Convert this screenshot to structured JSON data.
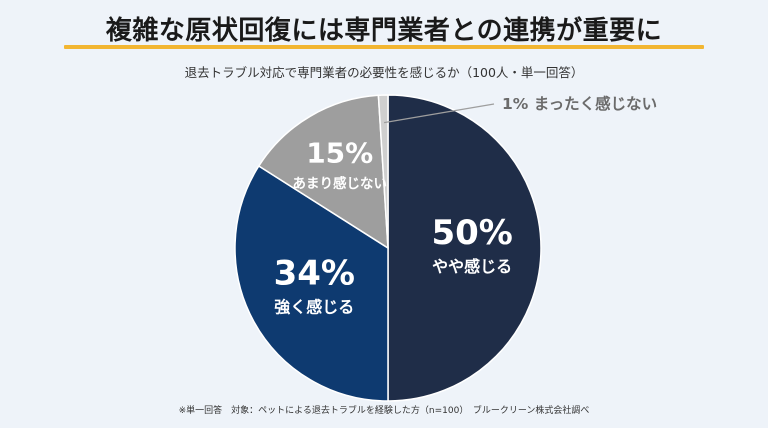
{
  "header": {
    "title": "複雑な原状回復には専門業者との連携が重要に",
    "subtitle": "退去トラブル対応で専門業者の必要性を感じるか（100人・単一回答）"
  },
  "footer": {
    "note": "※単一回答　対象：ペットによる退去トラブルを経験した方（n=100）　ブルークリーン株式会社調べ"
  },
  "chart_data": {
    "type": "pie",
    "categories": [
      "やや感じる",
      "強く感じる",
      "あまり感じない",
      "まったく感じない"
    ],
    "values": [
      50,
      34,
      15,
      1
    ],
    "value_labels": [
      "50%",
      "34%",
      "15%",
      "1%"
    ],
    "colors": [
      "#1f2d48",
      "#0e3a70",
      "#9e9e9e",
      "#cfcfcf"
    ],
    "start": "12 o'clock",
    "direction": "clockwise"
  }
}
